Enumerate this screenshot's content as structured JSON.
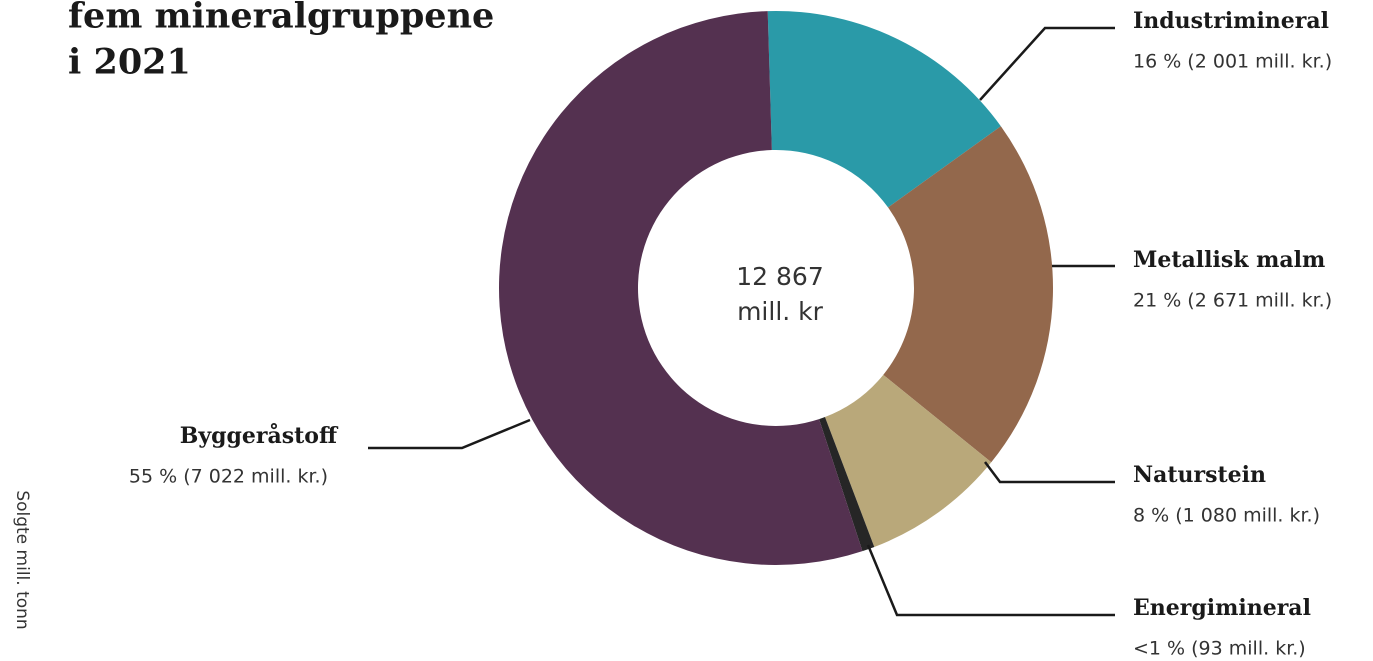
{
  "chart_data": {
    "type": "donut",
    "title_lines": [
      "fem mineralgruppene",
      "i 2021"
    ],
    "side_label": "Solgte mill. tonn",
    "center_label": [
      "12 867",
      "mill. kr"
    ],
    "categories": [
      "Industrimineral",
      "Metallisk malm",
      "Naturstein",
      "Energimineral",
      "Byggeråstoff"
    ],
    "values": [
      2001,
      2671,
      1080,
      93,
      7022
    ],
    "value_labels": [
      "16 % (2 001 mill. kr.)",
      "21 % (2 671 mill. kr.)",
      "8 % (1 080 mill. kr.)",
      "<1 % (93 mill. kr.)",
      "55 % (7 022 mill. kr.)"
    ],
    "colors": [
      "#2a9aa8",
      "#93684c",
      "#b9a87a",
      "#262626",
      "#543150"
    ]
  }
}
